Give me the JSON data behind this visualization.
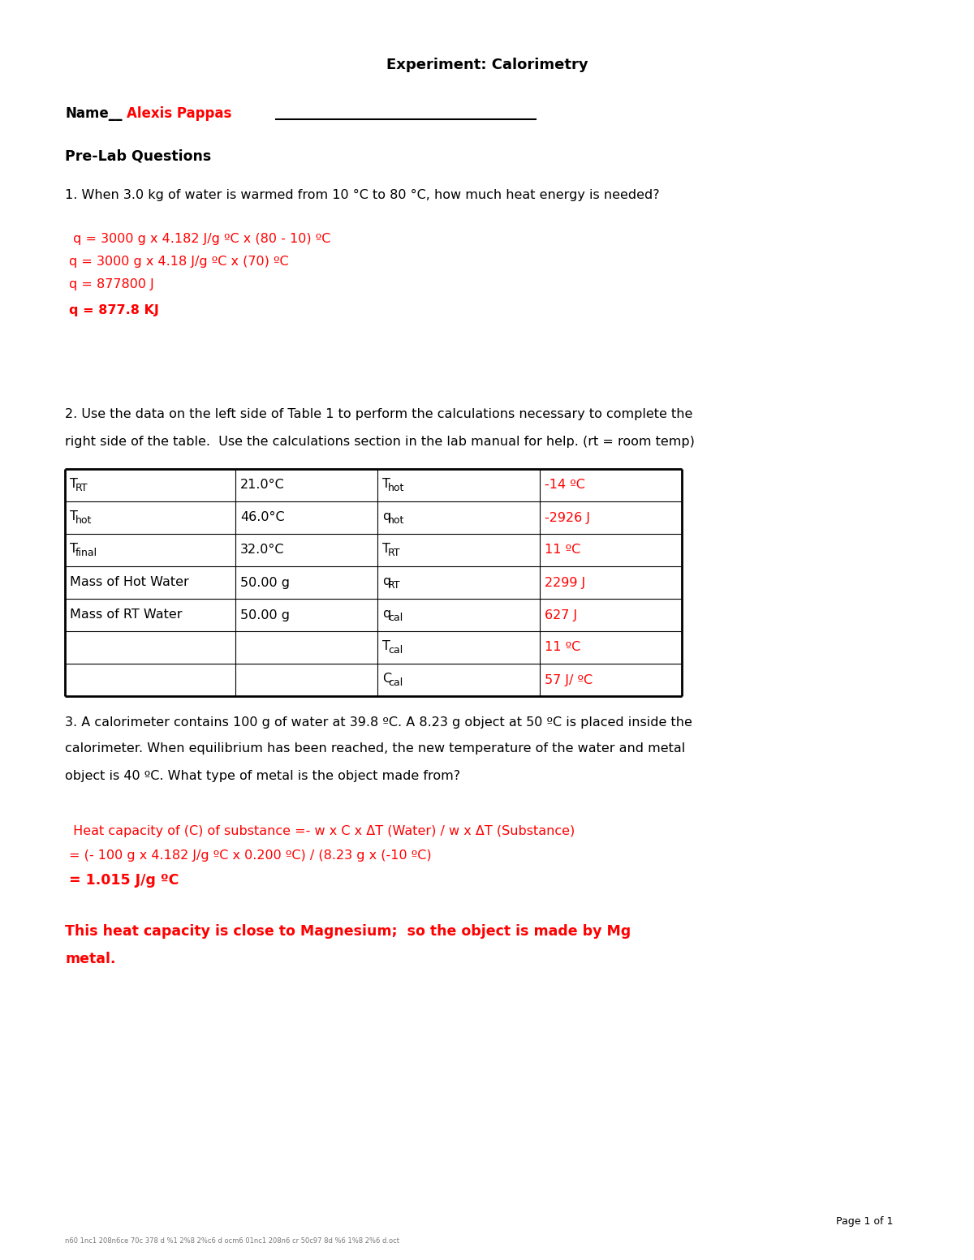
{
  "title": "Experiment: Calorimetry",
  "name_prefix": "Name__",
  "name_value": "Alexis Pappas",
  "section_header": "Pre-Lab Questions",
  "q1_text": "1. When 3.0 kg of water is warmed from 10 °C to 80 °C, how much heat energy is needed?",
  "q1_calc_lines": [
    " q = 3000 g x 4.182 J/g ºC x (80 - 10) ºC",
    "q = 3000 g x 4.18 J/g ºC x (70) ºC",
    "q = 877800 J",
    "q = 877.8 KJ"
  ],
  "q2_text_line1": "2. Use the data on the left side of Table 1 to perform the calculations necessary to complete the",
  "q2_text_line2": "right side of the table.  Use the calculations section in the lab manual for help. (rt = room temp)",
  "table_left_labels": [
    "T_RT",
    "T_hot",
    "T_final",
    "Mass of Hot Water",
    "Mass of RT Water",
    "",
    ""
  ],
  "table_left_values": [
    "21.0°C",
    "46.0°C",
    "32.0°C",
    "50.00 g",
    "50.00 g",
    "",
    ""
  ],
  "table_right_labels": [
    "T_hot",
    "q_hot",
    "T_RT",
    "q_RT",
    "q_cal",
    "T_cal",
    "C_cal"
  ],
  "table_right_values": [
    "-14 ºC",
    "-2926 J",
    "11 ºC",
    "2299 J",
    "627 J",
    "11 ºC",
    "57 J/ ºC"
  ],
  "q3_text_line1": "3. A calorimeter contains 100 g of water at 39.8 ºC. A 8.23 g object at 50 ºC is placed inside the",
  "q3_text_line2": "calorimeter. When equilibrium has been reached, the new temperature of the water and metal",
  "q3_text_line3": "object is 40 ºC. What type of metal is the object made from?",
  "q3_calc_line1": " Heat capacity of (C) of substance =- w x C x ΔT (Water) / w x ΔT (Substance)",
  "q3_calc_line2": "= (- 100 g x 4.182 J/g ºC x 0.200 ºC) / (8.23 g x (-10 ºC)",
  "q3_calc_line3": "= 1.015 J/g ºC",
  "q3_answer_line1": "This heat capacity is close to Magnesium;  so the object is made by Mg",
  "q3_answer_line2": "metal.",
  "footer": "Page 1 of 1",
  "footer_doc": "n60 1nc1 208n6ce 70c 378 d %1 2%8 2%c6 d ocm6 01nc1 208n6 cr 50c97 8d %6 1%8 2%6 d.oct",
  "bg_color": "#ffffff",
  "text_color": "#000000",
  "red_color": "#ff0000"
}
